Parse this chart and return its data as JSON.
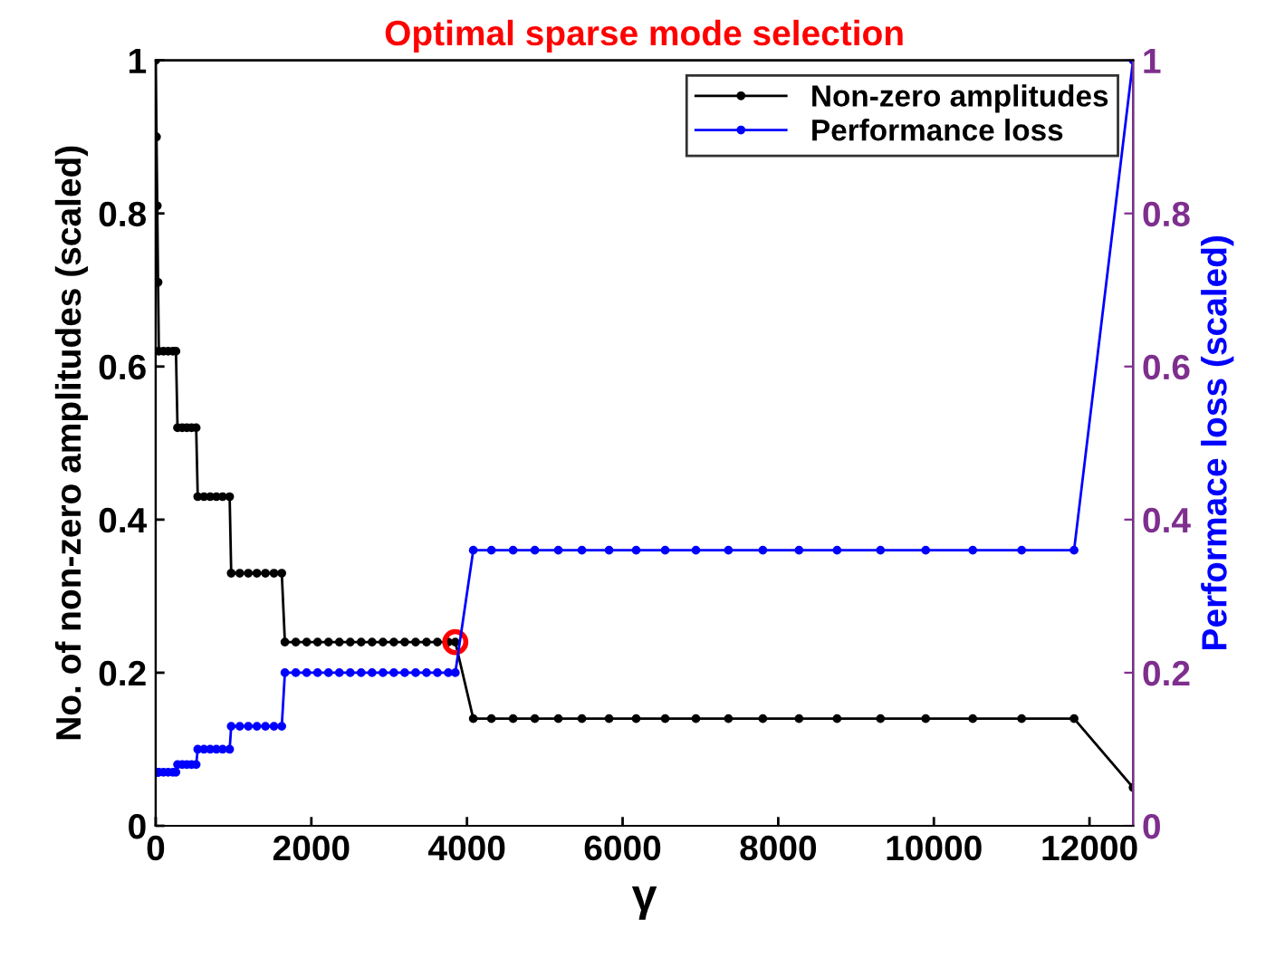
{
  "chart_data": {
    "type": "line",
    "title": "Optimal sparse mode selection",
    "xlabel": "γ",
    "ylabel": "No. of non-zero amplitudes (scaled)",
    "y2label": "Performace loss (scaled)",
    "x": [
      0,
      10,
      20,
      30,
      40,
      100,
      160,
      220,
      260,
      280,
      340,
      400,
      460,
      520,
      540,
      620,
      700,
      780,
      860,
      950,
      970,
      1080,
      1190,
      1300,
      1410,
      1520,
      1620,
      1660,
      1800,
      1940,
      2080,
      2220,
      2360,
      2500,
      2640,
      2780,
      2920,
      3060,
      3200,
      3340,
      3480,
      3620,
      3760,
      3850,
      4081,
      4314,
      4593,
      4872,
      5174,
      5477,
      5826,
      6174,
      6547,
      6942,
      7360,
      7802,
      8267,
      8756,
      9314,
      9895,
      10500,
      11128,
      11802,
      12560
    ],
    "series": [
      {
        "name": "Non-zero amplitudes",
        "color": "#000000",
        "values": [
          1,
          0.9,
          0.81,
          0.71,
          0.62,
          0.62,
          0.62,
          0.62,
          0.62,
          0.52,
          0.52,
          0.52,
          0.52,
          0.52,
          0.43,
          0.43,
          0.43,
          0.43,
          0.43,
          0.43,
          0.33,
          0.33,
          0.33,
          0.33,
          0.33,
          0.33,
          0.33,
          0.24,
          0.24,
          0.24,
          0.24,
          0.24,
          0.24,
          0.24,
          0.24,
          0.24,
          0.24,
          0.24,
          0.24,
          0.24,
          0.24,
          0.24,
          0.24,
          0.24,
          0.14,
          0.14,
          0.14,
          0.14,
          0.14,
          0.14,
          0.14,
          0.14,
          0.14,
          0.14,
          0.14,
          0.14,
          0.14,
          0.14,
          0.14,
          0.14,
          0.14,
          0.14,
          0.14,
          0.05
        ]
      },
      {
        "name": "Performance loss",
        "color": "#0000ff",
        "axis": "y2",
        "values": [
          0.07,
          0.07,
          0.07,
          0.07,
          0.07,
          0.07,
          0.07,
          0.07,
          0.07,
          0.08,
          0.08,
          0.08,
          0.08,
          0.08,
          0.1,
          0.1,
          0.1,
          0.1,
          0.1,
          0.1,
          0.13,
          0.13,
          0.13,
          0.13,
          0.13,
          0.13,
          0.13,
          0.2,
          0.2,
          0.2,
          0.2,
          0.2,
          0.2,
          0.2,
          0.2,
          0.2,
          0.2,
          0.2,
          0.2,
          0.2,
          0.2,
          0.2,
          0.2,
          0.2,
          0.36,
          0.36,
          0.36,
          0.36,
          0.36,
          0.36,
          0.36,
          0.36,
          0.36,
          0.36,
          0.36,
          0.36,
          0.36,
          0.36,
          0.36,
          0.36,
          0.36,
          0.36,
          0.36,
          1
        ]
      },
      {
        "type": "scatter",
        "color": "#ff0000",
        "x": [
          3850
        ],
        "values": [
          0.24
        ]
      }
    ],
    "xlim": [
      0,
      12560
    ],
    "xticks": [
      0,
      2000,
      4000,
      6000,
      8000,
      10000,
      12000
    ],
    "ylim": [
      0,
      1
    ],
    "yticks": [
      0,
      0.2,
      0.4,
      0.6,
      0.8,
      1
    ],
    "y2lim": [
      0,
      1
    ],
    "y2ticks": [
      0,
      0.2,
      0.4,
      0.6,
      0.8,
      1
    ],
    "marker": "circle",
    "grid": false,
    "legend": "top right"
  }
}
